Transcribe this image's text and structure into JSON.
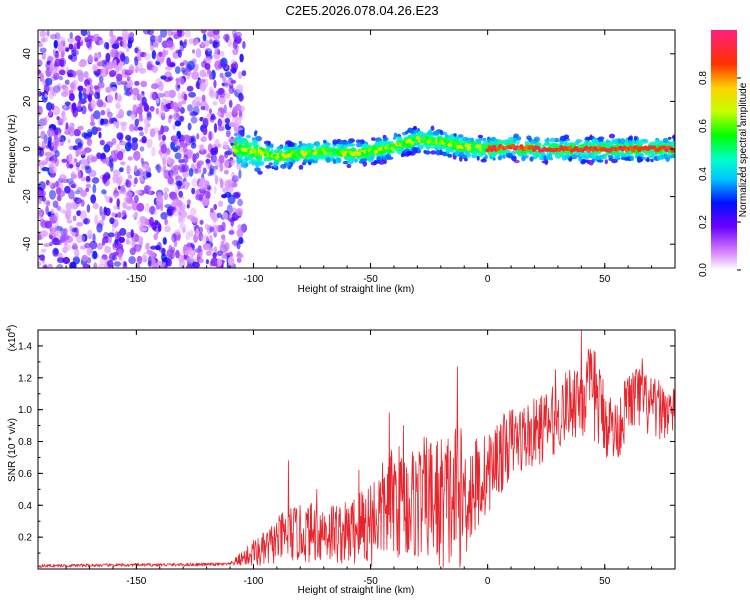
{
  "title": "C2E5.2026.078.04.26.E23",
  "chart_data": [
    {
      "type": "heatmap",
      "title": "C2E5.2026.078.04.26.E23",
      "xlabel": "Height of straight line (km)",
      "ylabel": "Frequency (Hz)",
      "xlim": [
        -192,
        80
      ],
      "ylim": [
        -50,
        50
      ],
      "xticks": [
        -150,
        -100,
        -50,
        0,
        50
      ],
      "xtick_labels": [
        "-150",
        "-100",
        "-50",
        "0",
        "50"
      ],
      "yticks": [
        -40,
        -20,
        0,
        20,
        40
      ],
      "ytick_labels": [
        "-40",
        "-20",
        "0",
        "20",
        "40"
      ],
      "colorbar": {
        "label": "Normalized spectral amplitude",
        "range": [
          0,
          1
        ],
        "ticks": [
          0.0,
          0.2,
          0.4,
          0.6,
          0.8
        ],
        "tick_labels": [
          "0.0",
          "0.2",
          "0.4",
          "0.6",
          "0.8"
        ]
      },
      "regions": [
        {
          "name": "noise",
          "x_range": [
            -192,
            -108
          ],
          "freq_range": [
            -50,
            50
          ],
          "amplitude": [
            0.05,
            0.3
          ]
        },
        {
          "name": "signal-band",
          "x_range": [
            -108,
            80
          ],
          "freq_range": [
            -8,
            8
          ],
          "amplitude": [
            0.2,
            0.6
          ]
        },
        {
          "name": "ridge",
          "x_range": [
            -108,
            80
          ],
          "freq_range": [
            -2,
            5
          ],
          "amplitude": [
            0.5,
            1.0
          ]
        }
      ],
      "ridge_center": {
        "x": [
          -108,
          -100,
          -90,
          -80,
          -70,
          -60,
          -50,
          -40,
          -30,
          -20,
          -10,
          0,
          10,
          20,
          40,
          60,
          80
        ],
        "freq": [
          0,
          -1,
          -3,
          -2,
          -1,
          -2,
          -1,
          1,
          4,
          3,
          1,
          0,
          1,
          0,
          0,
          0,
          0
        ]
      }
    },
    {
      "type": "line",
      "xlabel": "Height of straight line (km)",
      "ylabel": "SNR (10 * v/v)",
      "scale_label": "(x10",
      "scale_exponent": "4",
      "scale_close": ")",
      "xlim": [
        -192,
        80
      ],
      "ylim": [
        0,
        1.5
      ],
      "xticks": [
        -150,
        -100,
        -50,
        0,
        50
      ],
      "xtick_labels": [
        "-150",
        "-100",
        "-50",
        "0",
        "50"
      ],
      "yticks": [
        0.2,
        0.4,
        0.6,
        0.8,
        1.0,
        1.2,
        1.4
      ],
      "ytick_labels": [
        "0.2",
        "0.4",
        "0.6",
        "0.8",
        "1.0",
        "1.2",
        "1.4"
      ],
      "series": [
        {
          "name": "SNR",
          "color": "#e8242c",
          "envelope": {
            "x": [
              -192,
              -110,
              -103,
              -95,
              -90,
              -85,
              -80,
              -70,
              -60,
              -50,
              -42,
              -40,
              -35,
              -25,
              -20,
              -13,
              -10,
              0,
              5,
              10,
              20,
              30,
              35,
              40,
              45,
              50,
              55,
              60,
              65,
              70,
              75,
              80
            ],
            "mean": [
              0.02,
              0.03,
              0.08,
              0.12,
              0.18,
              0.22,
              0.22,
              0.24,
              0.22,
              0.3,
              0.4,
              0.45,
              0.4,
              0.45,
              0.4,
              0.45,
              0.45,
              0.6,
              0.7,
              0.8,
              0.85,
              0.95,
              1.05,
              1.1,
              1.1,
              0.95,
              0.85,
              1.05,
              1.08,
              1.0,
              1.0,
              0.98
            ],
            "amp": [
              0.01,
              0.01,
              0.06,
              0.12,
              0.14,
              0.18,
              0.18,
              0.2,
              0.2,
              0.3,
              0.32,
              0.36,
              0.36,
              0.4,
              0.45,
              0.48,
              0.4,
              0.25,
              0.25,
              0.22,
              0.22,
              0.22,
              0.22,
              0.3,
              0.3,
              0.25,
              0.2,
              0.2,
              0.22,
              0.2,
              0.18,
              0.15
            ]
          },
          "spikes": [
            {
              "x": -100,
              "y": 0.18
            },
            {
              "x": -85,
              "y": 0.68
            },
            {
              "x": -73,
              "y": 0.5
            },
            {
              "x": -55,
              "y": 0.62
            },
            {
              "x": -42,
              "y": 0.98
            },
            {
              "x": -36,
              "y": 0.9
            },
            {
              "x": -13,
              "y": 1.27
            },
            {
              "x": 4,
              "y": 0.9
            },
            {
              "x": 29,
              "y": 1.25
            },
            {
              "x": 40,
              "y": 1.5
            },
            {
              "x": 46,
              "y": 1.36
            },
            {
              "x": 66,
              "y": 1.32
            }
          ]
        }
      ]
    }
  ]
}
